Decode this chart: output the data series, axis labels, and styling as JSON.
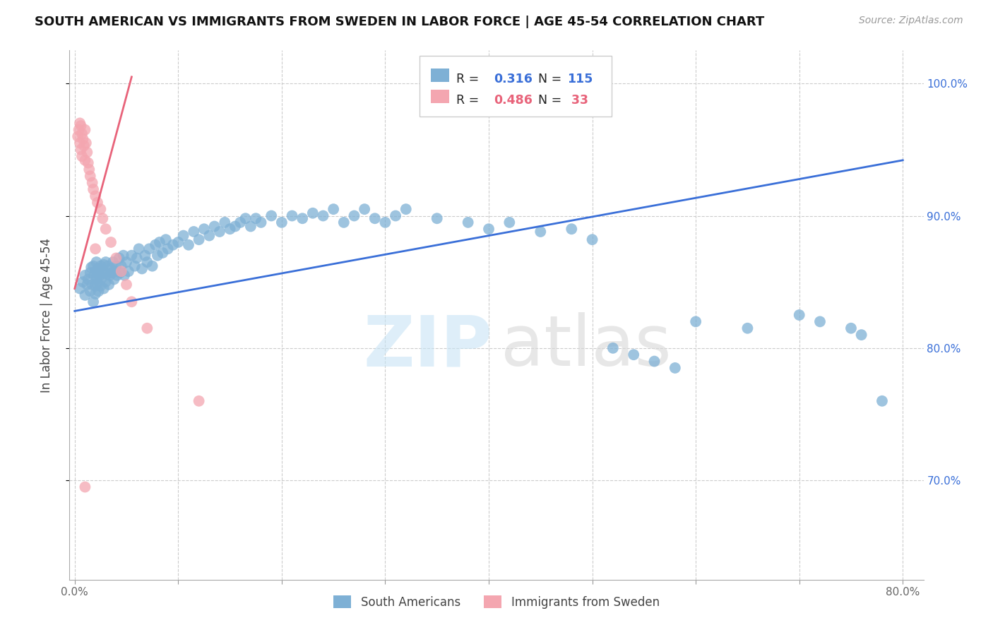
{
  "title": "SOUTH AMERICAN VS IMMIGRANTS FROM SWEDEN IN LABOR FORCE | AGE 45-54 CORRELATION CHART",
  "source": "Source: ZipAtlas.com",
  "ylabel": "In Labor Force | Age 45-54",
  "xlim": [
    -0.005,
    0.82
  ],
  "ylim": [
    0.625,
    1.025
  ],
  "x_ticks": [
    0.0,
    0.1,
    0.2,
    0.3,
    0.4,
    0.5,
    0.6,
    0.7,
    0.8
  ],
  "x_tick_labels": [
    "0.0%",
    "",
    "",
    "",
    "",
    "",
    "",
    "",
    "80.0%"
  ],
  "y_ticks_right": [
    0.7,
    0.8,
    0.9,
    1.0
  ],
  "y_tick_labels_right": [
    "70.0%",
    "80.0%",
    "90.0%",
    "100.0%"
  ],
  "blue_color": "#7EB0D5",
  "pink_color": "#F4A6B0",
  "blue_line_color": "#3A6FD8",
  "pink_line_color": "#E8637A",
  "r_blue": 0.316,
  "n_blue": 115,
  "r_pink": 0.486,
  "n_pink": 33,
  "legend_label_blue": "South Americans",
  "legend_label_pink": "Immigrants from Sweden",
  "blue_trend_x": [
    0.0,
    0.8
  ],
  "blue_trend_y": [
    0.828,
    0.942
  ],
  "pink_trend_x": [
    0.0,
    0.055
  ],
  "pink_trend_y": [
    0.845,
    1.005
  ],
  "blue_scatter_x": [
    0.005,
    0.008,
    0.01,
    0.01,
    0.012,
    0.013,
    0.015,
    0.015,
    0.016,
    0.017,
    0.018,
    0.018,
    0.019,
    0.02,
    0.02,
    0.02,
    0.021,
    0.021,
    0.022,
    0.022,
    0.023,
    0.023,
    0.024,
    0.025,
    0.025,
    0.026,
    0.027,
    0.028,
    0.028,
    0.029,
    0.03,
    0.03,
    0.031,
    0.032,
    0.033,
    0.034,
    0.035,
    0.036,
    0.037,
    0.038,
    0.039,
    0.04,
    0.041,
    0.043,
    0.044,
    0.045,
    0.047,
    0.048,
    0.05,
    0.052,
    0.055,
    0.058,
    0.06,
    0.062,
    0.065,
    0.068,
    0.07,
    0.072,
    0.075,
    0.078,
    0.08,
    0.082,
    0.085,
    0.088,
    0.09,
    0.095,
    0.1,
    0.105,
    0.11,
    0.115,
    0.12,
    0.125,
    0.13,
    0.135,
    0.14,
    0.145,
    0.15,
    0.155,
    0.16,
    0.165,
    0.17,
    0.175,
    0.18,
    0.19,
    0.2,
    0.21,
    0.22,
    0.23,
    0.24,
    0.25,
    0.26,
    0.27,
    0.28,
    0.29,
    0.3,
    0.31,
    0.32,
    0.35,
    0.38,
    0.4,
    0.42,
    0.45,
    0.48,
    0.5,
    0.52,
    0.54,
    0.56,
    0.58,
    0.6,
    0.65,
    0.7,
    0.72,
    0.75,
    0.76,
    0.78
  ],
  "blue_scatter_y": [
    0.845,
    0.85,
    0.84,
    0.855,
    0.848,
    0.852,
    0.843,
    0.857,
    0.861,
    0.848,
    0.835,
    0.862,
    0.855,
    0.841,
    0.858,
    0.847,
    0.852,
    0.865,
    0.849,
    0.856,
    0.843,
    0.86,
    0.855,
    0.847,
    0.862,
    0.853,
    0.858,
    0.845,
    0.863,
    0.857,
    0.85,
    0.865,
    0.856,
    0.862,
    0.848,
    0.855,
    0.86,
    0.857,
    0.865,
    0.852,
    0.858,
    0.862,
    0.855,
    0.868,
    0.857,
    0.862,
    0.87,
    0.855,
    0.865,
    0.858,
    0.87,
    0.862,
    0.868,
    0.875,
    0.86,
    0.87,
    0.865,
    0.875,
    0.862,
    0.878,
    0.87,
    0.88,
    0.872,
    0.882,
    0.875,
    0.878,
    0.88,
    0.885,
    0.878,
    0.888,
    0.882,
    0.89,
    0.885,
    0.892,
    0.888,
    0.895,
    0.89,
    0.892,
    0.895,
    0.898,
    0.892,
    0.898,
    0.895,
    0.9,
    0.895,
    0.9,
    0.898,
    0.902,
    0.9,
    0.905,
    0.895,
    0.9,
    0.905,
    0.898,
    0.895,
    0.9,
    0.905,
    0.898,
    0.895,
    0.89,
    0.895,
    0.888,
    0.89,
    0.882,
    0.8,
    0.795,
    0.79,
    0.785,
    0.82,
    0.815,
    0.825,
    0.82,
    0.815,
    0.81,
    0.76
  ],
  "pink_scatter_x": [
    0.003,
    0.004,
    0.005,
    0.005,
    0.006,
    0.006,
    0.007,
    0.007,
    0.008,
    0.009,
    0.01,
    0.01,
    0.011,
    0.012,
    0.013,
    0.014,
    0.015,
    0.017,
    0.018,
    0.02,
    0.022,
    0.025,
    0.027,
    0.03,
    0.035,
    0.04,
    0.045,
    0.05,
    0.055,
    0.07,
    0.12,
    0.02,
    0.01
  ],
  "pink_scatter_y": [
    0.96,
    0.965,
    0.97,
    0.955,
    0.968,
    0.95,
    0.962,
    0.945,
    0.958,
    0.953,
    0.965,
    0.942,
    0.955,
    0.948,
    0.94,
    0.935,
    0.93,
    0.925,
    0.92,
    0.915,
    0.91,
    0.905,
    0.898,
    0.89,
    0.88,
    0.868,
    0.858,
    0.848,
    0.835,
    0.815,
    0.76,
    0.875,
    0.695
  ]
}
